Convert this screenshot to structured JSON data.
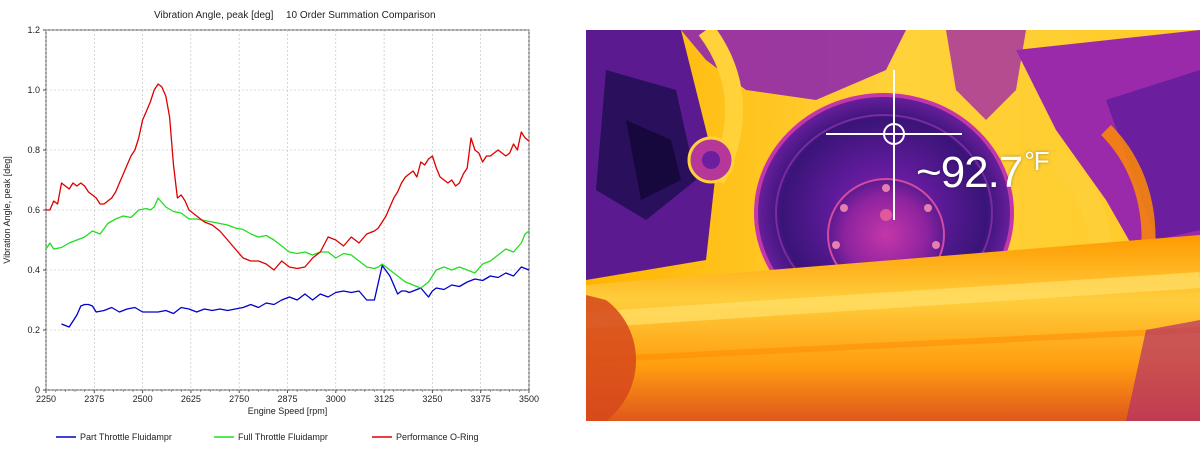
{
  "chart_data": {
    "type": "line",
    "title": "Vibration Angle, peak [deg]",
    "subtitle": "10 Order Summation Comparison",
    "xlabel": "Engine Speed [rpm]",
    "ylabel": "Vibration Angle, peak [deg]",
    "xlim": [
      2250,
      3500
    ],
    "ylim": [
      0,
      1.2
    ],
    "xticks": [
      "2250",
      "2375",
      "2500",
      "2625",
      "2750",
      "2875",
      "3000",
      "3125",
      "3250",
      "3375",
      "3500"
    ],
    "yticks": [
      "0",
      "0.2",
      "0.4",
      "0.6",
      "0.8",
      "1.0",
      "1.2"
    ],
    "grid": true,
    "legend_position": "bottom",
    "series": [
      {
        "name": "Part Throttle Fluidampr",
        "color": "#0000cc",
        "x": [
          2290,
          2300,
          2310,
          2330,
          2340,
          2350,
          2360,
          2370,
          2380,
          2400,
          2420,
          2440,
          2460,
          2480,
          2500,
          2520,
          2540,
          2560,
          2580,
          2600,
          2620,
          2640,
          2660,
          2680,
          2700,
          2720,
          2740,
          2760,
          2780,
          2800,
          2820,
          2840,
          2860,
          2880,
          2900,
          2920,
          2940,
          2960,
          2980,
          3000,
          3020,
          3040,
          3060,
          3080,
          3100,
          3120,
          3140,
          3150,
          3160,
          3170,
          3180,
          3190,
          3200,
          3220,
          3240,
          3250,
          3260,
          3280,
          3300,
          3320,
          3340,
          3360,
          3380,
          3400,
          3420,
          3440,
          3460,
          3480,
          3500
        ],
        "y": [
          0.22,
          0.215,
          0.21,
          0.25,
          0.28,
          0.285,
          0.285,
          0.28,
          0.26,
          0.265,
          0.275,
          0.26,
          0.27,
          0.275,
          0.26,
          0.26,
          0.26,
          0.265,
          0.255,
          0.275,
          0.27,
          0.26,
          0.27,
          0.265,
          0.27,
          0.265,
          0.27,
          0.275,
          0.285,
          0.275,
          0.29,
          0.285,
          0.3,
          0.31,
          0.3,
          0.32,
          0.3,
          0.32,
          0.31,
          0.325,
          0.33,
          0.325,
          0.33,
          0.3,
          0.3,
          0.415,
          0.38,
          0.35,
          0.32,
          0.33,
          0.33,
          0.325,
          0.33,
          0.34,
          0.31,
          0.33,
          0.34,
          0.335,
          0.35,
          0.345,
          0.36,
          0.37,
          0.365,
          0.38,
          0.375,
          0.39,
          0.38,
          0.41,
          0.4
        ]
      },
      {
        "name": "Full Throttle Fluidampr",
        "color": "#22dd22",
        "x": [
          2250,
          2260,
          2270,
          2290,
          2310,
          2330,
          2350,
          2370,
          2390,
          2410,
          2430,
          2450,
          2470,
          2490,
          2510,
          2520,
          2530,
          2540,
          2560,
          2580,
          2600,
          2620,
          2640,
          2660,
          2680,
          2700,
          2720,
          2740,
          2760,
          2780,
          2800,
          2820,
          2840,
          2860,
          2880,
          2900,
          2920,
          2940,
          2960,
          2980,
          3000,
          3020,
          3040,
          3060,
          3080,
          3100,
          3110,
          3120,
          3140,
          3160,
          3180,
          3200,
          3220,
          3240,
          3260,
          3280,
          3300,
          3320,
          3340,
          3360,
          3380,
          3400,
          3420,
          3440,
          3460,
          3480,
          3490,
          3500
        ],
        "y": [
          0.47,
          0.49,
          0.47,
          0.475,
          0.49,
          0.5,
          0.51,
          0.53,
          0.52,
          0.555,
          0.57,
          0.58,
          0.575,
          0.6,
          0.605,
          0.6,
          0.61,
          0.64,
          0.61,
          0.595,
          0.59,
          0.57,
          0.57,
          0.565,
          0.56,
          0.555,
          0.55,
          0.54,
          0.535,
          0.52,
          0.51,
          0.515,
          0.5,
          0.48,
          0.46,
          0.455,
          0.46,
          0.45,
          0.46,
          0.46,
          0.44,
          0.455,
          0.45,
          0.43,
          0.41,
          0.405,
          0.41,
          0.42,
          0.4,
          0.38,
          0.36,
          0.35,
          0.34,
          0.36,
          0.4,
          0.41,
          0.4,
          0.41,
          0.4,
          0.39,
          0.42,
          0.43,
          0.45,
          0.47,
          0.46,
          0.49,
          0.52,
          0.53
        ]
      },
      {
        "name": "Performance O-Ring",
        "color": "#dd0000",
        "x": [
          2250,
          2260,
          2270,
          2280,
          2290,
          2300,
          2310,
          2320,
          2330,
          2340,
          2350,
          2360,
          2370,
          2380,
          2390,
          2400,
          2410,
          2420,
          2430,
          2440,
          2450,
          2460,
          2470,
          2480,
          2490,
          2500,
          2510,
          2520,
          2530,
          2540,
          2550,
          2560,
          2570,
          2580,
          2590,
          2600,
          2610,
          2620,
          2640,
          2660,
          2680,
          2700,
          2720,
          2740,
          2760,
          2780,
          2800,
          2820,
          2840,
          2860,
          2880,
          2900,
          2920,
          2940,
          2960,
          2980,
          3000,
          3020,
          3040,
          3060,
          3080,
          3100,
          3110,
          3120,
          3130,
          3140,
          3150,
          3160,
          3170,
          3180,
          3190,
          3200,
          3210,
          3220,
          3230,
          3240,
          3250,
          3260,
          3270,
          3280,
          3290,
          3300,
          3310,
          3320,
          3330,
          3340,
          3350,
          3360,
          3370,
          3380,
          3390,
          3400,
          3410,
          3420,
          3430,
          3440,
          3450,
          3460,
          3470,
          3480,
          3490,
          3500
        ],
        "y": [
          0.6,
          0.6,
          0.63,
          0.62,
          0.69,
          0.68,
          0.67,
          0.69,
          0.68,
          0.69,
          0.68,
          0.66,
          0.65,
          0.64,
          0.62,
          0.62,
          0.63,
          0.64,
          0.66,
          0.69,
          0.72,
          0.75,
          0.78,
          0.8,
          0.84,
          0.9,
          0.93,
          0.96,
          1.0,
          1.02,
          1.01,
          0.98,
          0.91,
          0.75,
          0.64,
          0.65,
          0.63,
          0.6,
          0.58,
          0.56,
          0.55,
          0.53,
          0.5,
          0.47,
          0.44,
          0.43,
          0.43,
          0.42,
          0.4,
          0.43,
          0.41,
          0.405,
          0.41,
          0.44,
          0.46,
          0.51,
          0.5,
          0.48,
          0.51,
          0.49,
          0.52,
          0.53,
          0.54,
          0.56,
          0.58,
          0.61,
          0.64,
          0.66,
          0.69,
          0.71,
          0.72,
          0.73,
          0.71,
          0.76,
          0.75,
          0.77,
          0.78,
          0.74,
          0.71,
          0.7,
          0.69,
          0.7,
          0.68,
          0.69,
          0.72,
          0.74,
          0.84,
          0.8,
          0.79,
          0.76,
          0.78,
          0.78,
          0.79,
          0.8,
          0.79,
          0.78,
          0.79,
          0.82,
          0.8,
          0.86,
          0.84,
          0.83
        ]
      }
    ]
  },
  "thermal_image": {
    "readout_value": "~92.7",
    "readout_unit": "°F"
  }
}
